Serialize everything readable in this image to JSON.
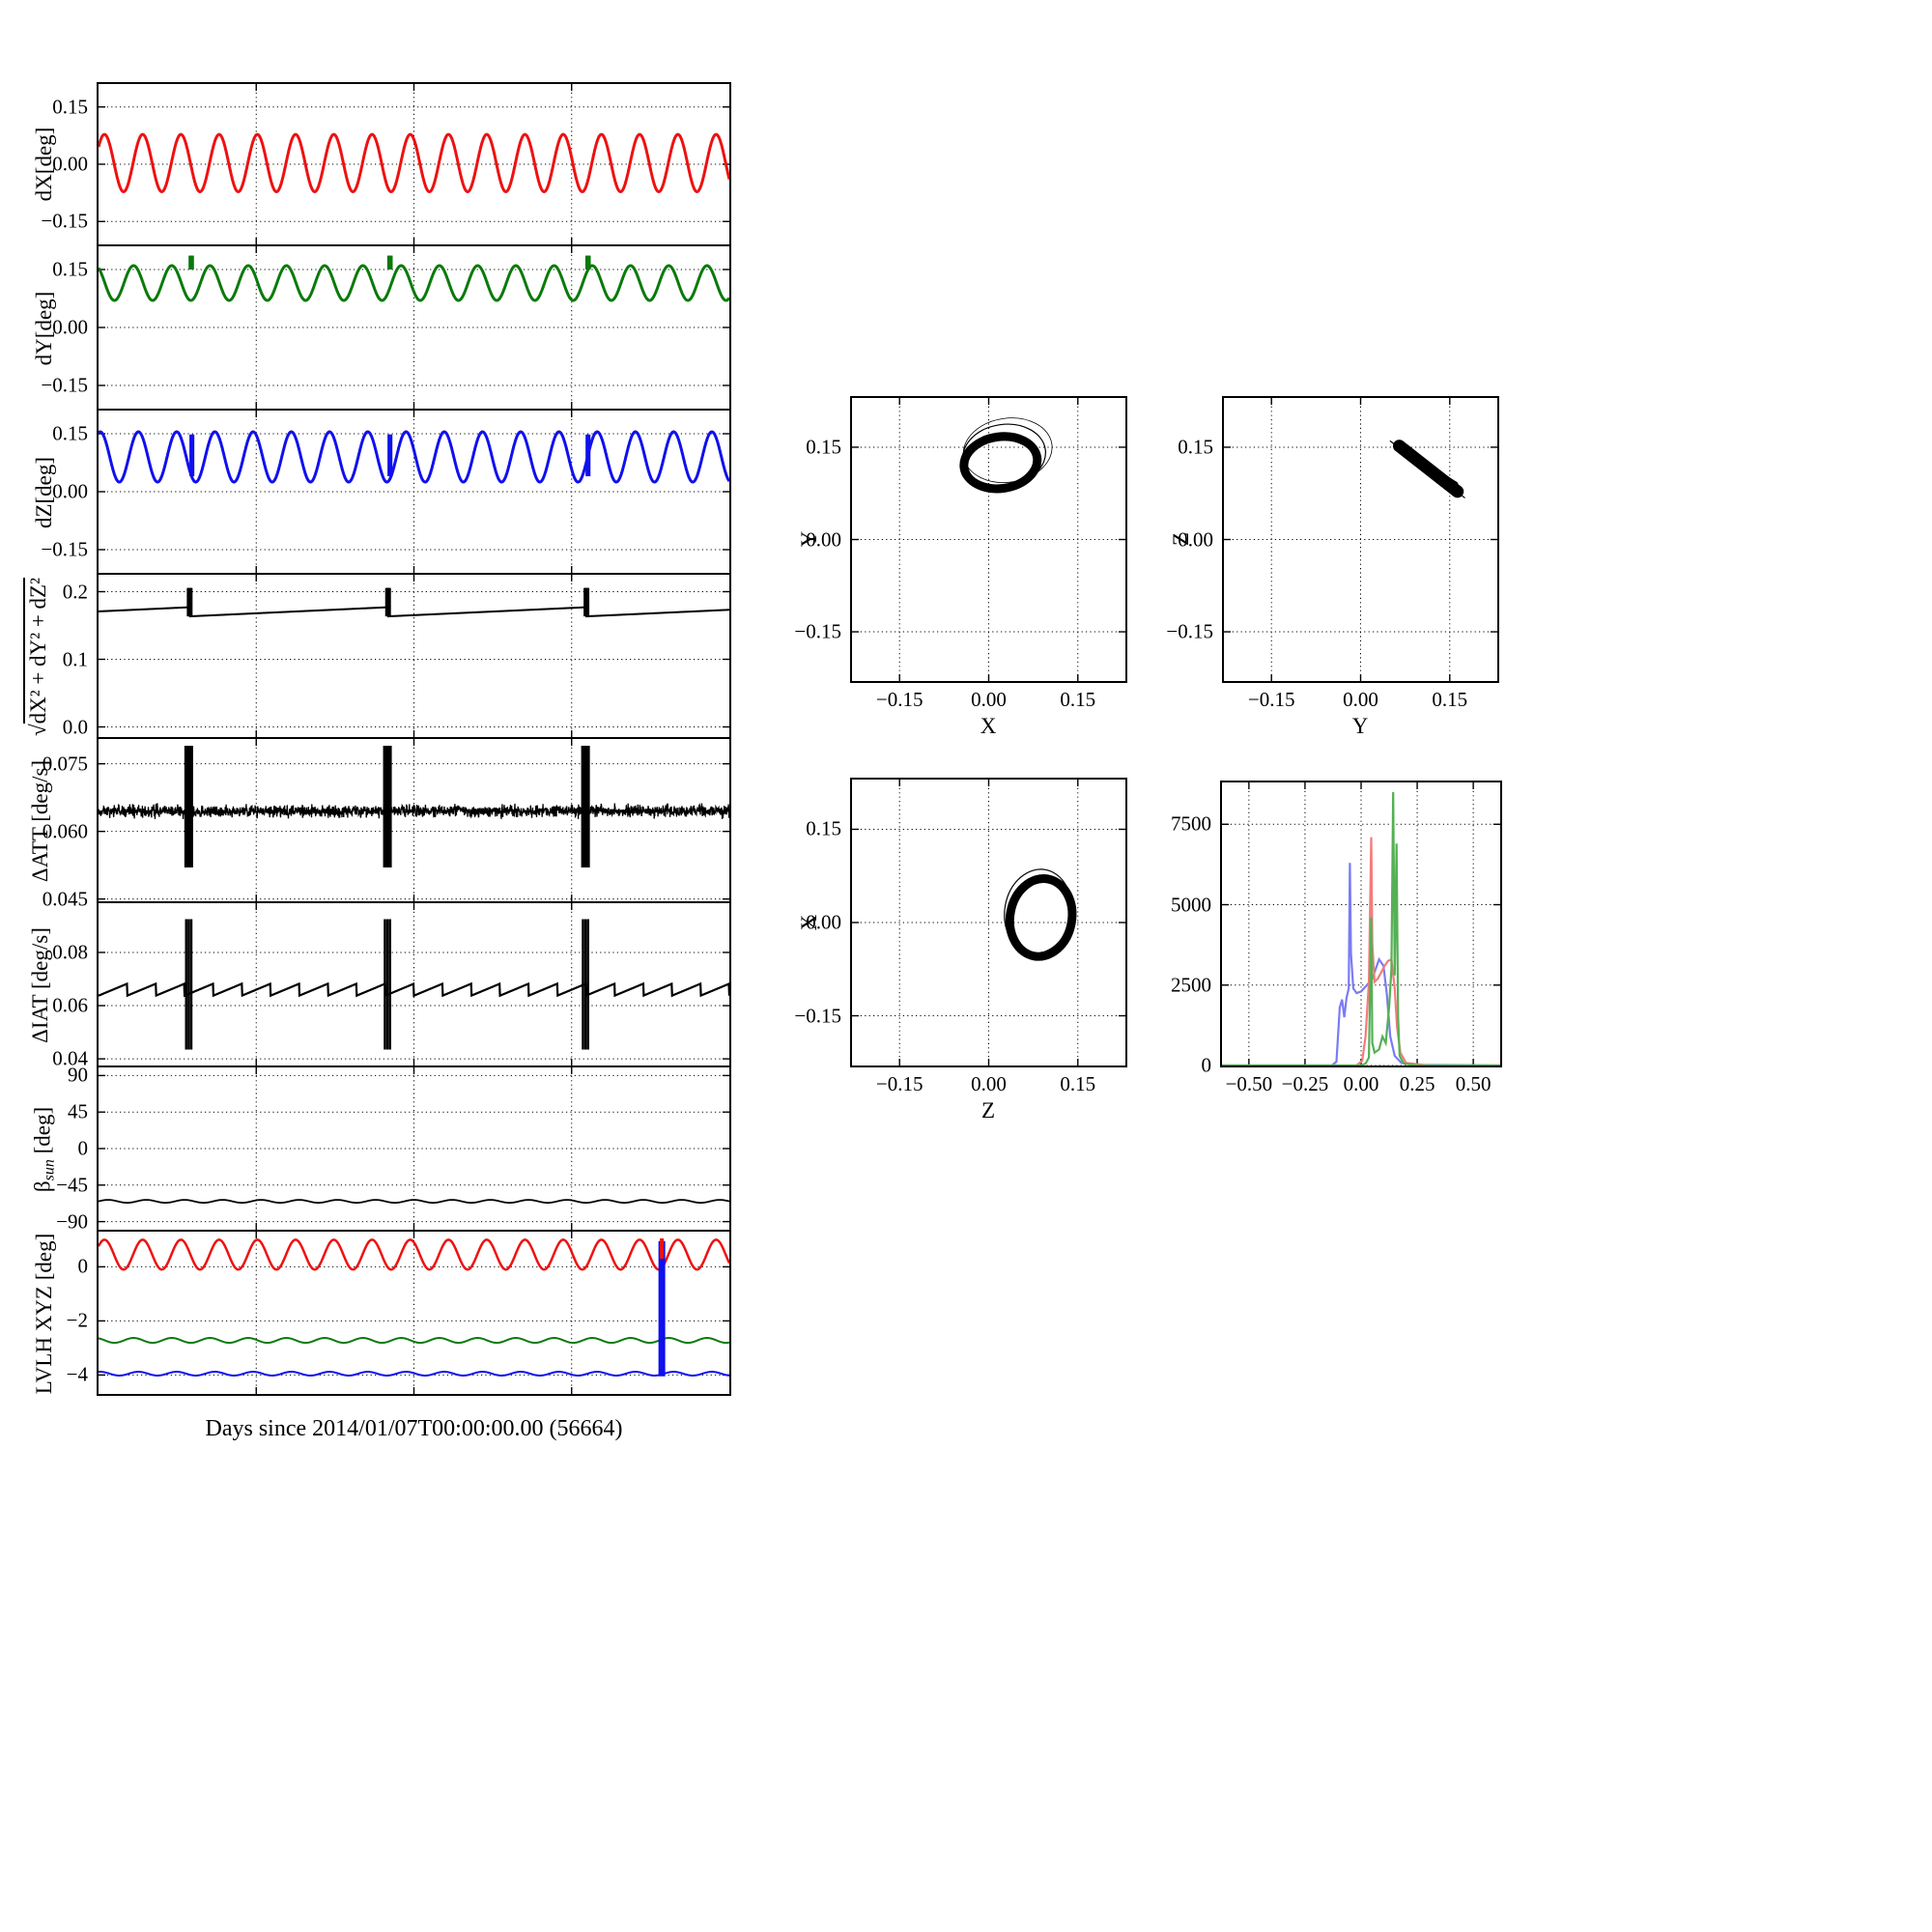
{
  "figure": {
    "xlabel": "Days since 2014/01/07T00:00:00.00 (56664)"
  },
  "chart_data": [
    {
      "id": "dx",
      "type": "line",
      "ylabel": "dX[deg]",
      "xlim": [
        0,
        1
      ],
      "ylim": [
        -0.21,
        0.21
      ],
      "xticks": [
        {
          "v": 0.25
        },
        {
          "v": 0.5
        },
        {
          "v": 0.75
        }
      ],
      "yticks": [
        {
          "v": 0.15,
          "label": "0.15"
        },
        {
          "v": 0,
          "label": "0.00"
        },
        {
          "v": -0.15,
          "label": "−0.15"
        }
      ],
      "series": [
        {
          "name": "dX",
          "kind": "line",
          "gen": "sine",
          "color": "#ee1111",
          "w": 3,
          "mean": 0.003,
          "amp": 0.075,
          "cycles": 16.5,
          "phase": 0.6
        }
      ]
    },
    {
      "id": "dy",
      "type": "line",
      "ylabel": "dY[deg]",
      "xlim": [
        0,
        1
      ],
      "ylim": [
        -0.21,
        0.21
      ],
      "xticks": [
        {
          "v": 0.25
        },
        {
          "v": 0.5
        },
        {
          "v": 0.75
        }
      ],
      "yticks": [
        {
          "v": 0.15,
          "label": "0.15"
        },
        {
          "v": 0,
          "label": "0.00"
        },
        {
          "v": -0.15,
          "label": "−0.15"
        }
      ],
      "series": [
        {
          "name": "dY",
          "kind": "line",
          "gen": "sine",
          "color": "#0a7a0a",
          "w": 3,
          "mean": 0.115,
          "amp": 0.045,
          "cycles": 16.5,
          "phase": 2.1
        },
        {
          "name": "dY-glitches",
          "kind": "vspikes",
          "color": "#0a7a0a",
          "xs": [
            0.147,
            0.462,
            0.776
          ],
          "y0": 0.15,
          "y1": 0.186,
          "w": 3,
          "cluster": [
            -0.002,
            0,
            0.002
          ]
        }
      ]
    },
    {
      "id": "dz",
      "type": "line",
      "ylabel": "dZ[deg]",
      "xlim": [
        0,
        1
      ],
      "ylim": [
        -0.21,
        0.21
      ],
      "xticks": [
        {
          "v": 0.25
        },
        {
          "v": 0.5
        },
        {
          "v": 0.75
        }
      ],
      "yticks": [
        {
          "v": 0.15,
          "label": "0.15"
        },
        {
          "v": 0,
          "label": "0.00"
        },
        {
          "v": -0.15,
          "label": "−0.15"
        }
      ],
      "series": [
        {
          "name": "dZ",
          "kind": "line",
          "gen": "sine",
          "color": "#1010ee",
          "w": 3,
          "mean": 0.09,
          "amp": 0.065,
          "cycles": 16.5,
          "phase": 1.3
        },
        {
          "name": "dZ-glitches",
          "kind": "vspikes",
          "color": "#1010ee",
          "xs": [
            0.148,
            0.462,
            0.776
          ],
          "y0": 0.04,
          "y1": 0.148,
          "w": 2.5,
          "cluster": [
            -0.002,
            0,
            0.002
          ]
        }
      ]
    },
    {
      "id": "norm",
      "type": "line",
      "ylabel": "√(dX²+dY²+dZ²)",
      "ylabel_sqrt": "√",
      "ylabel_radicand": "dX² + dY² + dZ²",
      "xlim": [
        0,
        1
      ],
      "ylim": [
        -0.015,
        0.225
      ],
      "xticks": [
        {
          "v": 0.25
        },
        {
          "v": 0.5
        },
        {
          "v": 0.75
        }
      ],
      "yticks": [
        {
          "v": 0.2,
          "label": "0.2"
        },
        {
          "v": 0.1,
          "label": "0.1"
        },
        {
          "v": 0,
          "label": "0.0"
        }
      ],
      "series": [
        {
          "name": "norm",
          "kind": "line",
          "gen": "rampsaw",
          "color": "#000000",
          "w": 2,
          "base0": 0.1635,
          "base1": 0.177,
          "period": 0.3145,
          "x0": -0.17
        },
        {
          "name": "norm-spikes",
          "kind": "vspikes",
          "color": "#000000",
          "xs": [
            0.1445,
            0.459,
            0.7735
          ],
          "y0": 0.1635,
          "y1": 0.2055,
          "w": 4,
          "cluster": [
            -0.0015,
            0,
            0.0015
          ]
        }
      ]
    },
    {
      "id": "datt",
      "type": "line",
      "ylabel": "ΔATT [deg/s]",
      "xlim": [
        0,
        1
      ],
      "ylim": [
        0.0445,
        0.0805
      ],
      "xticks": [
        {
          "v": 0.25
        },
        {
          "v": 0.5
        },
        {
          "v": 0.75
        }
      ],
      "yticks": [
        {
          "v": 0.075,
          "label": "0.075"
        },
        {
          "v": 0.06,
          "label": "0.060"
        },
        {
          "v": 0.045,
          "label": "0.045"
        }
      ],
      "series": [
        {
          "name": "datt-noise",
          "kind": "line",
          "gen": "noise",
          "color": "#000000",
          "w": 1.3,
          "mean": 0.0645,
          "jit": 0.0013,
          "seed": 11,
          "samples": 2200
        },
        {
          "name": "datt-spikes",
          "kind": "vspikes",
          "color": "#000000",
          "xs": [
            0.143,
            0.458,
            0.772
          ],
          "y0": 0.052,
          "y1": 0.079,
          "w": 2.5,
          "cluster": [
            -0.005,
            -0.0025,
            0,
            0.0025,
            0.005
          ]
        }
      ]
    },
    {
      "id": "diat",
      "type": "line",
      "ylabel": "ΔIAT [deg/s]",
      "xlim": [
        0,
        1
      ],
      "ylim": [
        0.0375,
        0.0985
      ],
      "xticks": [
        {
          "v": 0.25
        },
        {
          "v": 0.5
        },
        {
          "v": 0.75
        }
      ],
      "yticks": [
        {
          "v": 0.08,
          "label": "0.08"
        },
        {
          "v": 0.06,
          "label": "0.06"
        },
        {
          "v": 0.04,
          "label": "0.04"
        }
      ],
      "series": [
        {
          "name": "diat-sawtooth",
          "kind": "line",
          "gen": "sawtooth",
          "color": "#000000",
          "w": 2.2,
          "mean": 0.066,
          "amp": 0.0045,
          "cycles": 22
        },
        {
          "name": "diat-spikes",
          "kind": "vspikes",
          "color": "#000000",
          "xs": [
            0.143,
            0.458,
            0.772
          ],
          "y0": 0.0435,
          "y1": 0.0925,
          "w": 2.5,
          "cluster": [
            -0.004,
            0,
            0.004
          ]
        }
      ]
    },
    {
      "id": "bsun",
      "type": "line",
      "ylabel": "βsun [deg]",
      "ylabel_beta": "β",
      "ylabel_sub": "sun",
      "ylabel_rest": " [deg]",
      "xlim": [
        0,
        1
      ],
      "ylim": [
        -100,
        100
      ],
      "xticks": [
        {
          "v": 0.25
        },
        {
          "v": 0.5
        },
        {
          "v": 0.75
        }
      ],
      "yticks": [
        {
          "v": 90,
          "label": "90"
        },
        {
          "v": 45,
          "label": "45"
        },
        {
          "v": 0,
          "label": "0"
        },
        {
          "v": -45,
          "label": "−45"
        },
        {
          "v": -90,
          "label": "−90"
        }
      ],
      "series": [
        {
          "name": "beta-sun",
          "kind": "line",
          "gen": "sine",
          "color": "#000000",
          "w": 1.8,
          "mean": -65,
          "amp": 1.8,
          "cycles": 16.5,
          "phase": 0
        }
      ]
    },
    {
      "id": "lvlh",
      "type": "line",
      "ylabel": "LVLH XYZ [deg]",
      "xlim": [
        0,
        1
      ],
      "ylim": [
        -4.7,
        1.3
      ],
      "xticks": [
        {
          "v": 0.25
        },
        {
          "v": 0.5
        },
        {
          "v": 0.75
        }
      ],
      "yticks": [
        {
          "v": 0,
          "label": "0"
        },
        {
          "v": -2,
          "label": "−2"
        },
        {
          "v": -4,
          "label": "−4"
        }
      ],
      "series": [
        {
          "name": "lvlh-x",
          "kind": "line",
          "gen": "sine",
          "color": "#ee1111",
          "w": 2.5,
          "mean": 0.45,
          "amp": 0.55,
          "cycles": 16.5,
          "phase": 0.6
        },
        {
          "name": "lvlh-y",
          "kind": "line",
          "gen": "sine",
          "color": "#0a7a0a",
          "w": 2,
          "mean": -2.72,
          "amp": 0.09,
          "cycles": 16.5,
          "phase": 2.1
        },
        {
          "name": "lvlh-z",
          "kind": "line",
          "gen": "sine",
          "color": "#1010ee",
          "w": 2,
          "mean": -3.95,
          "amp": 0.07,
          "cycles": 16.5,
          "phase": 1.3
        },
        {
          "name": "lvlh-z-spike",
          "kind": "vspikes",
          "color": "#1010ee",
          "xs": [
            0.893
          ],
          "y0": -4.05,
          "y1": 0.95,
          "w": 7,
          "cluster": [
            0
          ]
        },
        {
          "name": "lvlh-x-spike",
          "kind": "vspikes",
          "color": "#ee1111",
          "xs": [
            0.893
          ],
          "y0": 0.3,
          "y1": 1.05,
          "w": 4,
          "cluster": [
            0
          ]
        }
      ]
    },
    {
      "id": "xy",
      "type": "scatter",
      "xlabel": "X",
      "ylabel": "Y",
      "xlim": [
        -0.23,
        0.23
      ],
      "ylim": [
        -0.23,
        0.23
      ],
      "xticks": [
        {
          "v": -0.15,
          "label": "−0.15"
        },
        {
          "v": 0,
          "label": "0.00"
        },
        {
          "v": 0.15,
          "label": "0.15"
        }
      ],
      "yticks": [
        {
          "v": 0.15,
          "label": "0.15"
        },
        {
          "v": 0,
          "label": "0.00"
        },
        {
          "v": -0.15,
          "label": "−0.15"
        }
      ],
      "series": [
        {
          "name": "xy-orbit",
          "kind": "ring",
          "color": "#000000",
          "cx": 0.02,
          "cy": 0.125,
          "rx": 0.062,
          "ry": 0.042,
          "rot": -8,
          "w": 9,
          "strays": [
            {
              "dx": 0.006,
              "dy": 0.012,
              "rx": 0.07,
              "ry": 0.05,
              "w": 1.2
            },
            {
              "dx": 0.012,
              "dy": 0.02,
              "rx": 0.075,
              "ry": 0.052,
              "w": 0.8
            }
          ]
        }
      ]
    },
    {
      "id": "yz",
      "type": "scatter",
      "xlabel": "Y",
      "ylabel": "Z",
      "xlim": [
        -0.23,
        0.23
      ],
      "ylim": [
        -0.23,
        0.23
      ],
      "xticks": [
        {
          "v": -0.15,
          "label": "−0.15"
        },
        {
          "v": 0,
          "label": "0.00"
        },
        {
          "v": 0.15,
          "label": "0.15"
        }
      ],
      "yticks": [
        {
          "v": 0.15,
          "label": "0.15"
        },
        {
          "v": 0,
          "label": "0.00"
        },
        {
          "v": -0.15,
          "label": "−0.15"
        }
      ],
      "series": [
        {
          "name": "yz-orbit",
          "kind": "segment",
          "color": "#000000",
          "x1": 0.065,
          "y1": 0.152,
          "x2": 0.163,
          "y2": 0.078,
          "w": 13,
          "strays": [
            {
              "x1": 0.05,
              "y1": 0.16,
              "x2": 0.175,
              "y2": 0.068,
              "w": 1.2
            },
            {
              "x1": 0.07,
              "y1": 0.145,
              "x2": 0.16,
              "y2": 0.09,
              "w": 5
            }
          ]
        }
      ]
    },
    {
      "id": "zx",
      "type": "scatter",
      "xlabel": "Z",
      "ylabel": "X",
      "xlim": [
        -0.23,
        0.23
      ],
      "ylim": [
        -0.23,
        0.23
      ],
      "xticks": [
        {
          "v": -0.15,
          "label": "−0.15"
        },
        {
          "v": 0,
          "label": "0.00"
        },
        {
          "v": 0.15,
          "label": "0.15"
        }
      ],
      "yticks": [
        {
          "v": 0.15,
          "label": "0.15"
        },
        {
          "v": 0,
          "label": "0.00"
        },
        {
          "v": -0.15,
          "label": "−0.15"
        }
      ],
      "series": [
        {
          "name": "zx-orbit",
          "kind": "ring",
          "color": "#000000",
          "cx": 0.088,
          "cy": 0.008,
          "rx": 0.052,
          "ry": 0.063,
          "rot": 10,
          "w": 9,
          "strays": [
            {
              "dx": -0.005,
              "dy": 0.01,
              "rx": 0.056,
              "ry": 0.068,
              "w": 1.2
            }
          ]
        }
      ]
    },
    {
      "id": "hist",
      "type": "line",
      "xlim": [
        -0.62,
        0.62
      ],
      "ylim": [
        0,
        8800
      ],
      "xticks": [
        {
          "v": -0.5,
          "label": "−0.50"
        },
        {
          "v": -0.25,
          "label": "−0.25"
        },
        {
          "v": 0,
          "label": "0.00"
        },
        {
          "v": 0.25,
          "label": "0.25"
        },
        {
          "v": 0.5,
          "label": "0.50"
        }
      ],
      "yticks": [
        {
          "v": 7500,
          "label": "7500"
        },
        {
          "v": 5000,
          "label": "5000"
        },
        {
          "v": 2500,
          "label": "2500"
        },
        {
          "v": 0,
          "label": "0"
        }
      ],
      "series": [
        {
          "name": "hist-x",
          "kind": "line",
          "color": "#7b7bf5",
          "w": 2.2,
          "points": [
            [
              -0.62,
              0
            ],
            [
              -0.13,
              0
            ],
            [
              -0.11,
              120
            ],
            [
              -0.095,
              1800
            ],
            [
              -0.085,
              2050
            ],
            [
              -0.075,
              1500
            ],
            [
              -0.065,
              2100
            ],
            [
              -0.055,
              2400
            ],
            [
              -0.05,
              6300
            ],
            [
              -0.045,
              3500
            ],
            [
              -0.035,
              2400
            ],
            [
              -0.02,
              2250
            ],
            [
              0,
              2300
            ],
            [
              0.02,
              2450
            ],
            [
              0.05,
              2700
            ],
            [
              0.08,
              3300
            ],
            [
              0.1,
              3100
            ],
            [
              0.115,
              2200
            ],
            [
              0.13,
              900
            ],
            [
              0.15,
              300
            ],
            [
              0.18,
              80
            ],
            [
              0.25,
              20
            ],
            [
              0.62,
              0
            ]
          ]
        },
        {
          "name": "hist-y",
          "kind": "line",
          "color": "#f57b7b",
          "w": 2.2,
          "points": [
            [
              -0.62,
              0
            ],
            [
              -0.02,
              0
            ],
            [
              0.005,
              150
            ],
            [
              0.02,
              900
            ],
            [
              0.035,
              2600
            ],
            [
              0.045,
              7100
            ],
            [
              0.05,
              3800
            ],
            [
              0.06,
              2600
            ],
            [
              0.075,
              2700
            ],
            [
              0.09,
              2900
            ],
            [
              0.105,
              3100
            ],
            [
              0.12,
              3250
            ],
            [
              0.135,
              3300
            ],
            [
              0.15,
              2400
            ],
            [
              0.16,
              1200
            ],
            [
              0.175,
              400
            ],
            [
              0.2,
              80
            ],
            [
              0.3,
              0
            ],
            [
              0.62,
              0
            ]
          ]
        },
        {
          "name": "hist-z",
          "kind": "line",
          "color": "#55b055",
          "w": 2.2,
          "points": [
            [
              -0.62,
              0
            ],
            [
              0,
              0
            ],
            [
              0.02,
              60
            ],
            [
              0.035,
              250
            ],
            [
              0.045,
              4600
            ],
            [
              0.05,
              700
            ],
            [
              0.06,
              400
            ],
            [
              0.08,
              500
            ],
            [
              0.095,
              900
            ],
            [
              0.11,
              700
            ],
            [
              0.125,
              1800
            ],
            [
              0.135,
              3000
            ],
            [
              0.143,
              8500
            ],
            [
              0.15,
              2800
            ],
            [
              0.158,
              6900
            ],
            [
              0.165,
              1500
            ],
            [
              0.172,
              300
            ],
            [
              0.19,
              60
            ],
            [
              0.25,
              0
            ],
            [
              0.62,
              0
            ]
          ]
        }
      ]
    }
  ]
}
